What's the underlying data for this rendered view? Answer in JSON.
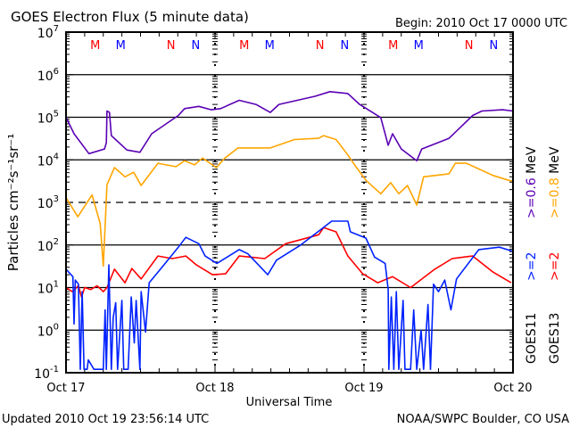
{
  "chart_data": {
    "type": "line",
    "title": "GOES Electron Flux (5 minute data)",
    "begin": "Begin: 2010 Oct 17 0000 UTC",
    "xlabel": "Universal Time",
    "ylabel": "Particles cm⁻²s⁻¹sr⁻¹",
    "x_unit": "hours since 2010 Oct 17 0000 UTC",
    "xlim": [
      0,
      72
    ],
    "x_ticks": [
      {
        "hour": 0,
        "label": "Oct 17"
      },
      {
        "hour": 24,
        "label": "Oct 18"
      },
      {
        "hour": 48,
        "label": "Oct 19"
      },
      {
        "hour": 72,
        "label": "Oct 20"
      }
    ],
    "ylim": [
      0.1,
      10000000
    ],
    "yscale": "log",
    "y_ticks": [
      {
        "base": "10",
        "exp": "7"
      },
      {
        "base": "10",
        "exp": "6"
      },
      {
        "base": "10",
        "exp": "5"
      },
      {
        "base": "10",
        "exp": "4"
      },
      {
        "base": "10",
        "exp": "3"
      },
      {
        "base": "10",
        "exp": "2"
      },
      {
        "base": "10",
        "exp": "1"
      },
      {
        "base": "10",
        "exp": "0"
      },
      {
        "base": "10",
        "exp": "-1"
      }
    ],
    "markers": [
      {
        "hour": 4.7,
        "label": "M",
        "color": "#ff0000"
      },
      {
        "hour": 8.8,
        "label": "M",
        "color": "#0000ff"
      },
      {
        "hour": 16.9,
        "label": "N",
        "color": "#ff0000"
      },
      {
        "hour": 20.9,
        "label": "N",
        "color": "#0000ff"
      },
      {
        "hour": 28.7,
        "label": "M",
        "color": "#ff0000"
      },
      {
        "hour": 32.8,
        "label": "M",
        "color": "#0000ff"
      },
      {
        "hour": 40.9,
        "label": "N",
        "color": "#ff0000"
      },
      {
        "hour": 44.9,
        "label": "N",
        "color": "#0000ff"
      },
      {
        "hour": 52.7,
        "label": "M",
        "color": "#ff0000"
      },
      {
        "hour": 56.8,
        "label": "M",
        "color": "#0000ff"
      },
      {
        "hour": 64.9,
        "label": "N",
        "color": "#ff0000"
      },
      {
        "hour": 68.9,
        "label": "N",
        "color": "#0000ff"
      }
    ],
    "legend": [
      {
        "satellite": "GOES11",
        "entries": [
          {
            "label": ">=2",
            "color": "#0022ff"
          },
          {
            "label": ">=0.6 MeV",
            "color": "#5a00b4"
          }
        ]
      },
      {
        "satellite": "GOES13",
        "entries": [
          {
            "label": ">=2",
            "color": "#ff0000"
          },
          {
            "label": ">=0.8 MeV",
            "color": "#ffa500"
          }
        ]
      }
    ],
    "series": [
      {
        "name": "GOES11 >=0.6 MeV",
        "color": "#5a00b4",
        "points": [
          [
            0,
            100000.0
          ],
          [
            1.3,
            41000.0
          ],
          [
            3.7,
            14000.0
          ],
          [
            6.2,
            18000.0
          ],
          [
            6.5,
            25000.0
          ],
          [
            6.6,
            140000.0
          ],
          [
            7.0,
            130000.0
          ],
          [
            7.3,
            37000.0
          ],
          [
            9.8,
            17000.0
          ],
          [
            11.9,
            15000.0
          ],
          [
            13.8,
            41000.0
          ],
          [
            18.1,
            110000.0
          ],
          [
            19.1,
            160000.0
          ],
          [
            21.4,
            180000.0
          ],
          [
            23.4,
            150000.0
          ],
          [
            24.9,
            160000.0
          ],
          [
            27.9,
            250000.0
          ],
          [
            30.6,
            200000.0
          ],
          [
            32.9,
            130000.0
          ],
          [
            34.3,
            200000.0
          ],
          [
            40.1,
            310000.0
          ],
          [
            42.5,
            400000.0
          ],
          [
            45.4,
            360000.0
          ],
          [
            47.3,
            200000.0
          ],
          [
            50.7,
            98000.0
          ],
          [
            51.9,
            22000.0
          ],
          [
            52.6,
            41000.0
          ],
          [
            54,
            18000.0
          ],
          [
            56.5,
            9500.0
          ],
          [
            57.3,
            18000.0
          ],
          [
            61.7,
            32000.0
          ],
          [
            65.5,
            110000.0
          ],
          [
            67,
            140000.0
          ],
          [
            70.3,
            150000.0
          ],
          [
            72,
            140000.0
          ]
        ]
      },
      {
        "name": "GOES13 >=0.8 MeV",
        "color": "#ffa500",
        "points": [
          [
            0,
            1300.0
          ],
          [
            1.9,
            460.0
          ],
          [
            4.2,
            1500.0
          ],
          [
            5.5,
            320.0
          ],
          [
            6.0,
            32
          ],
          [
            6.6,
            2600.0
          ],
          [
            7.8,
            6600.0
          ],
          [
            9.5,
            4000.0
          ],
          [
            10.9,
            5100.0
          ],
          [
            12.1,
            2500.0
          ],
          [
            14.8,
            8300.0
          ],
          [
            17.7,
            6900.0
          ],
          [
            19.1,
            9500.0
          ],
          [
            20.7,
            7600.0
          ],
          [
            22,
            11000.0
          ],
          [
            24.2,
            6600.0
          ],
          [
            25.6,
            11000.0
          ],
          [
            27.7,
            19000.0
          ],
          [
            32.9,
            19000.0
          ],
          [
            36.8,
            30000.0
          ],
          [
            40.7,
            32000.0
          ],
          [
            41.5,
            37000.0
          ],
          [
            43.5,
            30000.0
          ],
          [
            45.4,
            13000.0
          ],
          [
            46.8,
            6600.0
          ],
          [
            48.3,
            3300.0
          ],
          [
            50.7,
            1600.0
          ],
          [
            52.3,
            2900.0
          ],
          [
            53.6,
            1600.0
          ],
          [
            55,
            2500.0
          ],
          [
            56.5,
            870.0
          ],
          [
            57.6,
            4000.0
          ],
          [
            61.7,
            4700.0
          ],
          [
            62.7,
            8300.0
          ],
          [
            64.5,
            8300.0
          ],
          [
            68.8,
            4300.0
          ],
          [
            71.3,
            3300.0
          ],
          [
            72,
            3200.0
          ]
        ]
      },
      {
        "name": "GOES13 >=2 MeV",
        "color": "#ff0000",
        "points": [
          [
            0,
            10
          ],
          [
            1,
            8
          ],
          [
            2,
            11
          ],
          [
            2.5,
            6
          ],
          [
            3,
            10
          ],
          [
            4,
            9
          ],
          [
            5,
            11
          ],
          [
            6,
            8
          ],
          [
            6.6,
            10
          ],
          [
            7.8,
            27
          ],
          [
            9.5,
            13
          ],
          [
            10.6,
            28
          ],
          [
            12.1,
            16
          ],
          [
            14.8,
            55
          ],
          [
            17.1,
            48
          ],
          [
            19.3,
            55
          ],
          [
            21,
            34
          ],
          [
            23.6,
            20
          ],
          [
            25.7,
            21
          ],
          [
            27.9,
            55
          ],
          [
            32,
            48
          ],
          [
            35.4,
            107
          ],
          [
            40.7,
            174
          ],
          [
            41.5,
            257
          ],
          [
            43.5,
            204
          ],
          [
            45.4,
            55
          ],
          [
            47.8,
            21
          ],
          [
            50.2,
            13
          ],
          [
            52.6,
            18
          ],
          [
            55.5,
            10
          ],
          [
            59.4,
            27
          ],
          [
            62.2,
            48
          ],
          [
            65.5,
            55
          ],
          [
            68.8,
            23
          ],
          [
            71.7,
            13
          ]
        ]
      },
      {
        "name": "GOES11 >=2 MeV",
        "color": "#0022ff",
        "points": [
          [
            0,
            27
          ],
          [
            1.1,
            18
          ],
          [
            1.3,
            1.4
          ],
          [
            1.5,
            15
          ],
          [
            2.0,
            12
          ],
          [
            2.3,
            0.12
          ],
          [
            2.6,
            8
          ],
          [
            2.9,
            0.12
          ],
          [
            3.4,
            0.12
          ],
          [
            3.6,
            0.2
          ],
          [
            4.5,
            0.12
          ],
          [
            6.0,
            0.12
          ],
          [
            6.3,
            3
          ],
          [
            6.5,
            0.12
          ],
          [
            6.9,
            34
          ],
          [
            7.3,
            0.12
          ],
          [
            7.6,
            2
          ],
          [
            8.0,
            4.4
          ],
          [
            8.3,
            0.12
          ],
          [
            9.0,
            5
          ],
          [
            9.3,
            0.12
          ],
          [
            10.0,
            0.12
          ],
          [
            10.5,
            6
          ],
          [
            11,
            0.5
          ],
          [
            11.3,
            5
          ],
          [
            11.9,
            0.12
          ],
          [
            12.1,
            8
          ],
          [
            12.8,
            0.9
          ],
          [
            13.4,
            13
          ],
          [
            15.2,
            27
          ],
          [
            18.1,
            89
          ],
          [
            19.3,
            151
          ],
          [
            21.4,
            107
          ],
          [
            22.4,
            55
          ],
          [
            24.3,
            37
          ],
          [
            27.9,
            78
          ],
          [
            29.3,
            62
          ],
          [
            32.5,
            20
          ],
          [
            33.9,
            44
          ],
          [
            37.8,
            100
          ],
          [
            41.1,
            234
          ],
          [
            42.8,
            363
          ],
          [
            45.4,
            363
          ],
          [
            45.8,
            204
          ],
          [
            48.3,
            145
          ],
          [
            49.7,
            52
          ],
          [
            51.4,
            37
          ],
          [
            51.9,
            9
          ],
          [
            52,
            0.12
          ],
          [
            52.4,
            6
          ],
          [
            52.8,
            0.12
          ],
          [
            53.2,
            8
          ],
          [
            53.6,
            0.12
          ],
          [
            54.3,
            5
          ],
          [
            54.6,
            0.12
          ],
          [
            55.5,
            0.12
          ],
          [
            56,
            3
          ],
          [
            56.5,
            0.12
          ],
          [
            57.2,
            1
          ],
          [
            57.6,
            0.12
          ],
          [
            58.3,
            4
          ],
          [
            58.7,
            0.12
          ],
          [
            59.2,
            12
          ],
          [
            60,
            8
          ],
          [
            61,
            15
          ],
          [
            62,
            3
          ],
          [
            62.9,
            16
          ],
          [
            66.5,
            78
          ],
          [
            69.8,
            89
          ],
          [
            72,
            71
          ]
        ]
      }
    ]
  },
  "footer": {
    "updated": "Updated 2010 Oct 19 23:56:14 UTC",
    "source": "NOAA/SWPC Boulder, CO USA"
  }
}
